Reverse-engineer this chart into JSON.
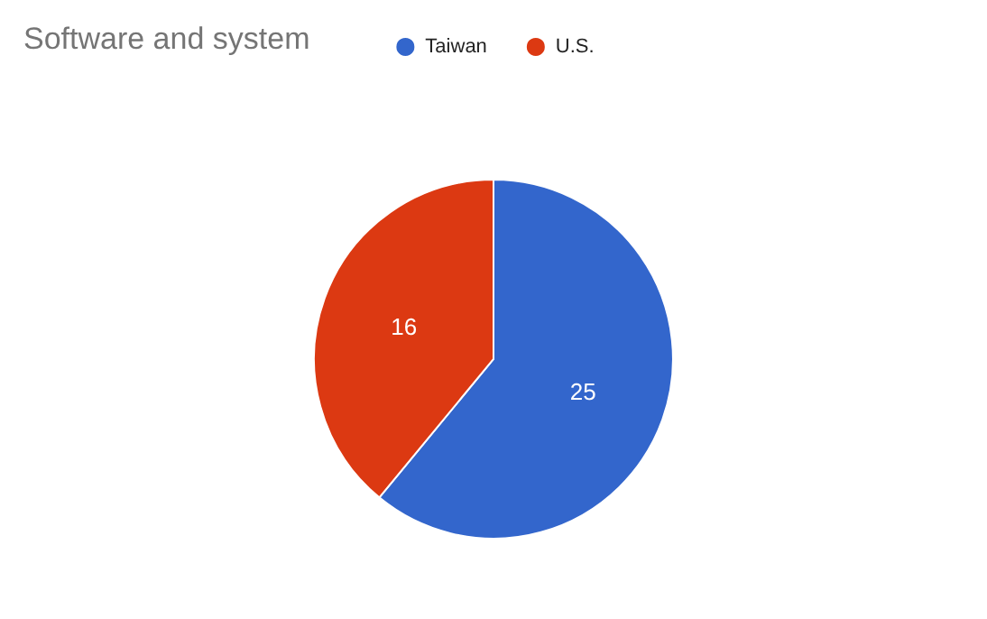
{
  "chart_data": {
    "type": "pie",
    "title": "Software and system",
    "categories": [
      "Taiwan",
      "U.S."
    ],
    "values": [
      25,
      16
    ],
    "colors": [
      "#3366cc",
      "#dc3912"
    ],
    "legend": "top",
    "data_labels": true
  }
}
